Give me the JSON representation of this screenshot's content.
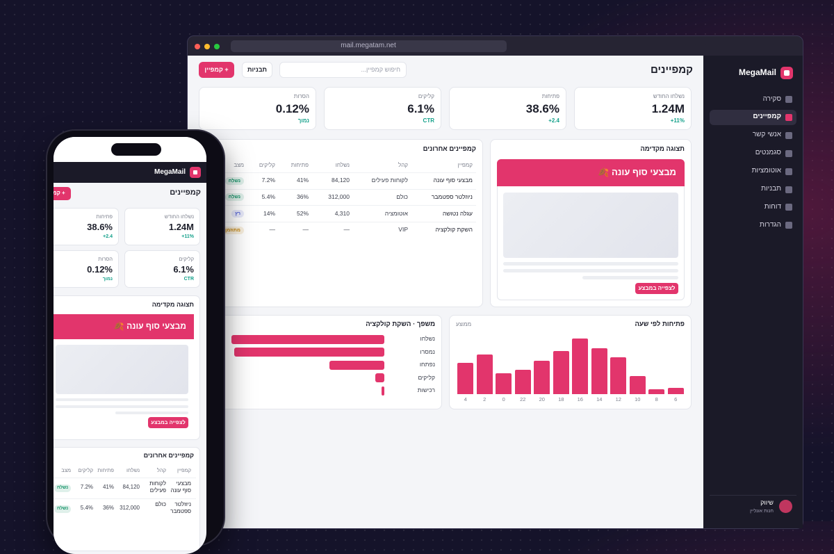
{
  "window": {
    "url": "mail.megatam.net"
  },
  "sidebar": {
    "brand": "MegaMail",
    "nav": [
      "סקירה",
      "קמפיינים",
      "אנשי קשר",
      "סגמנטים",
      "אוטומציות",
      "תבניות",
      "דוחות",
      "הגדרות"
    ],
    "active": 1,
    "user": {
      "name": "שיווק",
      "org": "חנות אונליין"
    }
  },
  "header": {
    "title": "קמפיינים",
    "search_placeholder": "חיפוש קמפיין...",
    "templates_button": "תבניות",
    "new_button": "+ קמפיין"
  },
  "stats": [
    {
      "label": "נשלחו החודש",
      "value": "1.24M",
      "delta": "11%+"
    },
    {
      "label": "פתיחות",
      "value": "38.6%",
      "delta": "2.4+"
    },
    {
      "label": "קליקים",
      "value": "6.1%",
      "delta": "CTR"
    },
    {
      "label": "הסרות",
      "value": "0.12%",
      "delta": "נמוך"
    }
  ],
  "preview": {
    "title": "תצוגה מקדימה",
    "banner": "מבצעי סוף עונה 🍂",
    "button": "לצפייה במבצע"
  },
  "table": {
    "title": "קמפיינים אחרונים",
    "columns": [
      "קמפיין",
      "קהל",
      "נשלחו",
      "פתיחות",
      "קליקים",
      "מצב"
    ],
    "rows": [
      [
        "מבצעי סוף עונה",
        "לקוחות פעילים",
        "84,120",
        "41%",
        "7.2%",
        "נשלח"
      ],
      [
        "ניוזלטר ספטמבר",
        "כולם",
        "312,000",
        "36%",
        "5.4%",
        "נשלח"
      ],
      [
        "עגלה נטושה",
        "אוטומציה",
        "4,310",
        "52%",
        "14%",
        "רץ"
      ],
      [
        "השקת קולקציה",
        "VIP",
        "—",
        "—",
        "—",
        "מתוזמן"
      ]
    ],
    "status_colors": [
      "#17956a",
      "#17956a",
      "#4a5bd4",
      "#c7870f"
    ]
  },
  "chart_data": [
    {
      "type": "bar",
      "title": "פתיחות לפי שעה",
      "subtitle": "ממוצע",
      "categories": [
        "6",
        "8",
        "10",
        "12",
        "14",
        "16",
        "18",
        "20",
        "22",
        "0",
        "2",
        "4"
      ],
      "values": [
        11,
        9,
        33,
        66,
        83,
        100,
        78,
        60,
        44,
        38,
        71,
        56
      ],
      "ylim": [
        0,
        100
      ],
      "color": "#e2356c",
      "direction": "rtl"
    },
    {
      "type": "hbar",
      "title": "משפך · השקת קולקציה",
      "categories": [
        "נשלחו",
        "נמסרו",
        "נפתחו",
        "קליקים",
        "רכישות"
      ],
      "values": [
        100,
        98,
        36,
        6,
        2
      ],
      "xlim": [
        0,
        100
      ],
      "color": "#e2356c"
    }
  ]
}
